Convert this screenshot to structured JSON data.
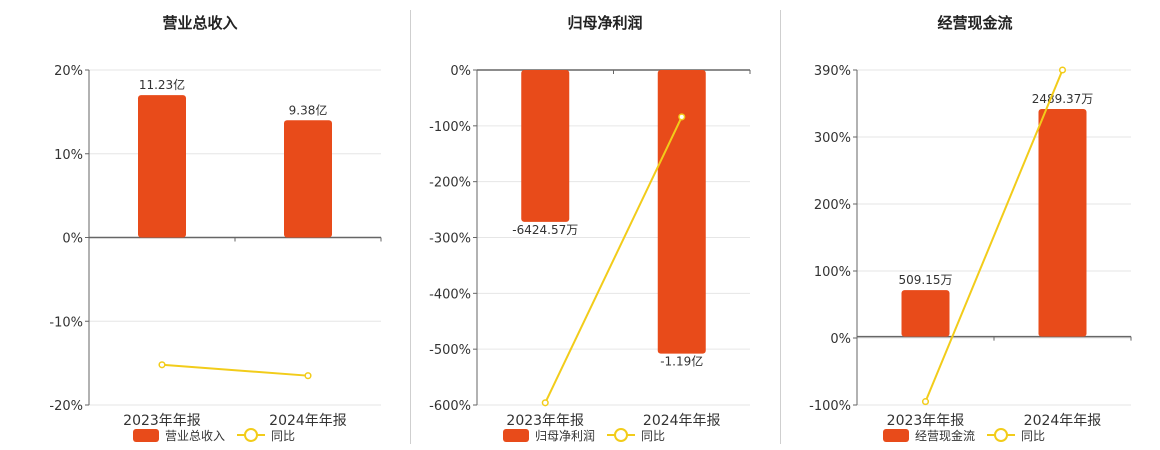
{
  "colors": {
    "bar": "#e84b1a",
    "line": "#f2cc1a",
    "axis": "#666666",
    "grid": "#e6e6e6"
  },
  "chart_data": [
    {
      "type": "bar",
      "title": "营业总收入",
      "categories": [
        "2023年年报",
        "2024年年报"
      ],
      "yticks": [
        "20%",
        "10%",
        "0%",
        "-10%",
        "-20%"
      ],
      "ylim": [
        -20,
        20
      ],
      "series": [
        {
          "name": "营业总收入",
          "type": "bar",
          "values": [
            17,
            14
          ],
          "labels": [
            "11.23亿",
            "9.38亿"
          ]
        },
        {
          "name": "同比",
          "type": "line",
          "values": [
            -15.2,
            -16.5
          ]
        }
      ],
      "legend": "bottom",
      "grid": true
    },
    {
      "type": "bar",
      "title": "归母净利润",
      "categories": [
        "2023年年报",
        "2024年年报"
      ],
      "yticks": [
        "0%",
        "-100%",
        "-200%",
        "-300%",
        "-400%",
        "-500%",
        "-600%"
      ],
      "ylim": [
        -600,
        0
      ],
      "series": [
        {
          "name": "归母净利润",
          "type": "bar",
          "values": [
            -272,
            -508
          ],
          "labels": [
            "-6424.57万",
            "-1.19亿"
          ]
        },
        {
          "name": "同比",
          "type": "line",
          "values": [
            -596,
            -84
          ]
        }
      ],
      "legend": "bottom",
      "grid": true
    },
    {
      "type": "bar",
      "title": "经营现金流",
      "categories": [
        "2023年年报",
        "2024年年报"
      ],
      "yticks": [
        "390%",
        "300%",
        "200%",
        "100%",
        "0%",
        "-100%"
      ],
      "ylim": [
        -100,
        390
      ],
      "series": [
        {
          "name": "经营现金流",
          "type": "bar",
          "values": [
            68,
            333
          ],
          "labels": [
            "509.15万",
            "2489.37万"
          ]
        },
        {
          "name": "同比",
          "type": "line",
          "values": [
            -95,
            390
          ]
        }
      ],
      "legend": "bottom",
      "grid": true
    }
  ]
}
